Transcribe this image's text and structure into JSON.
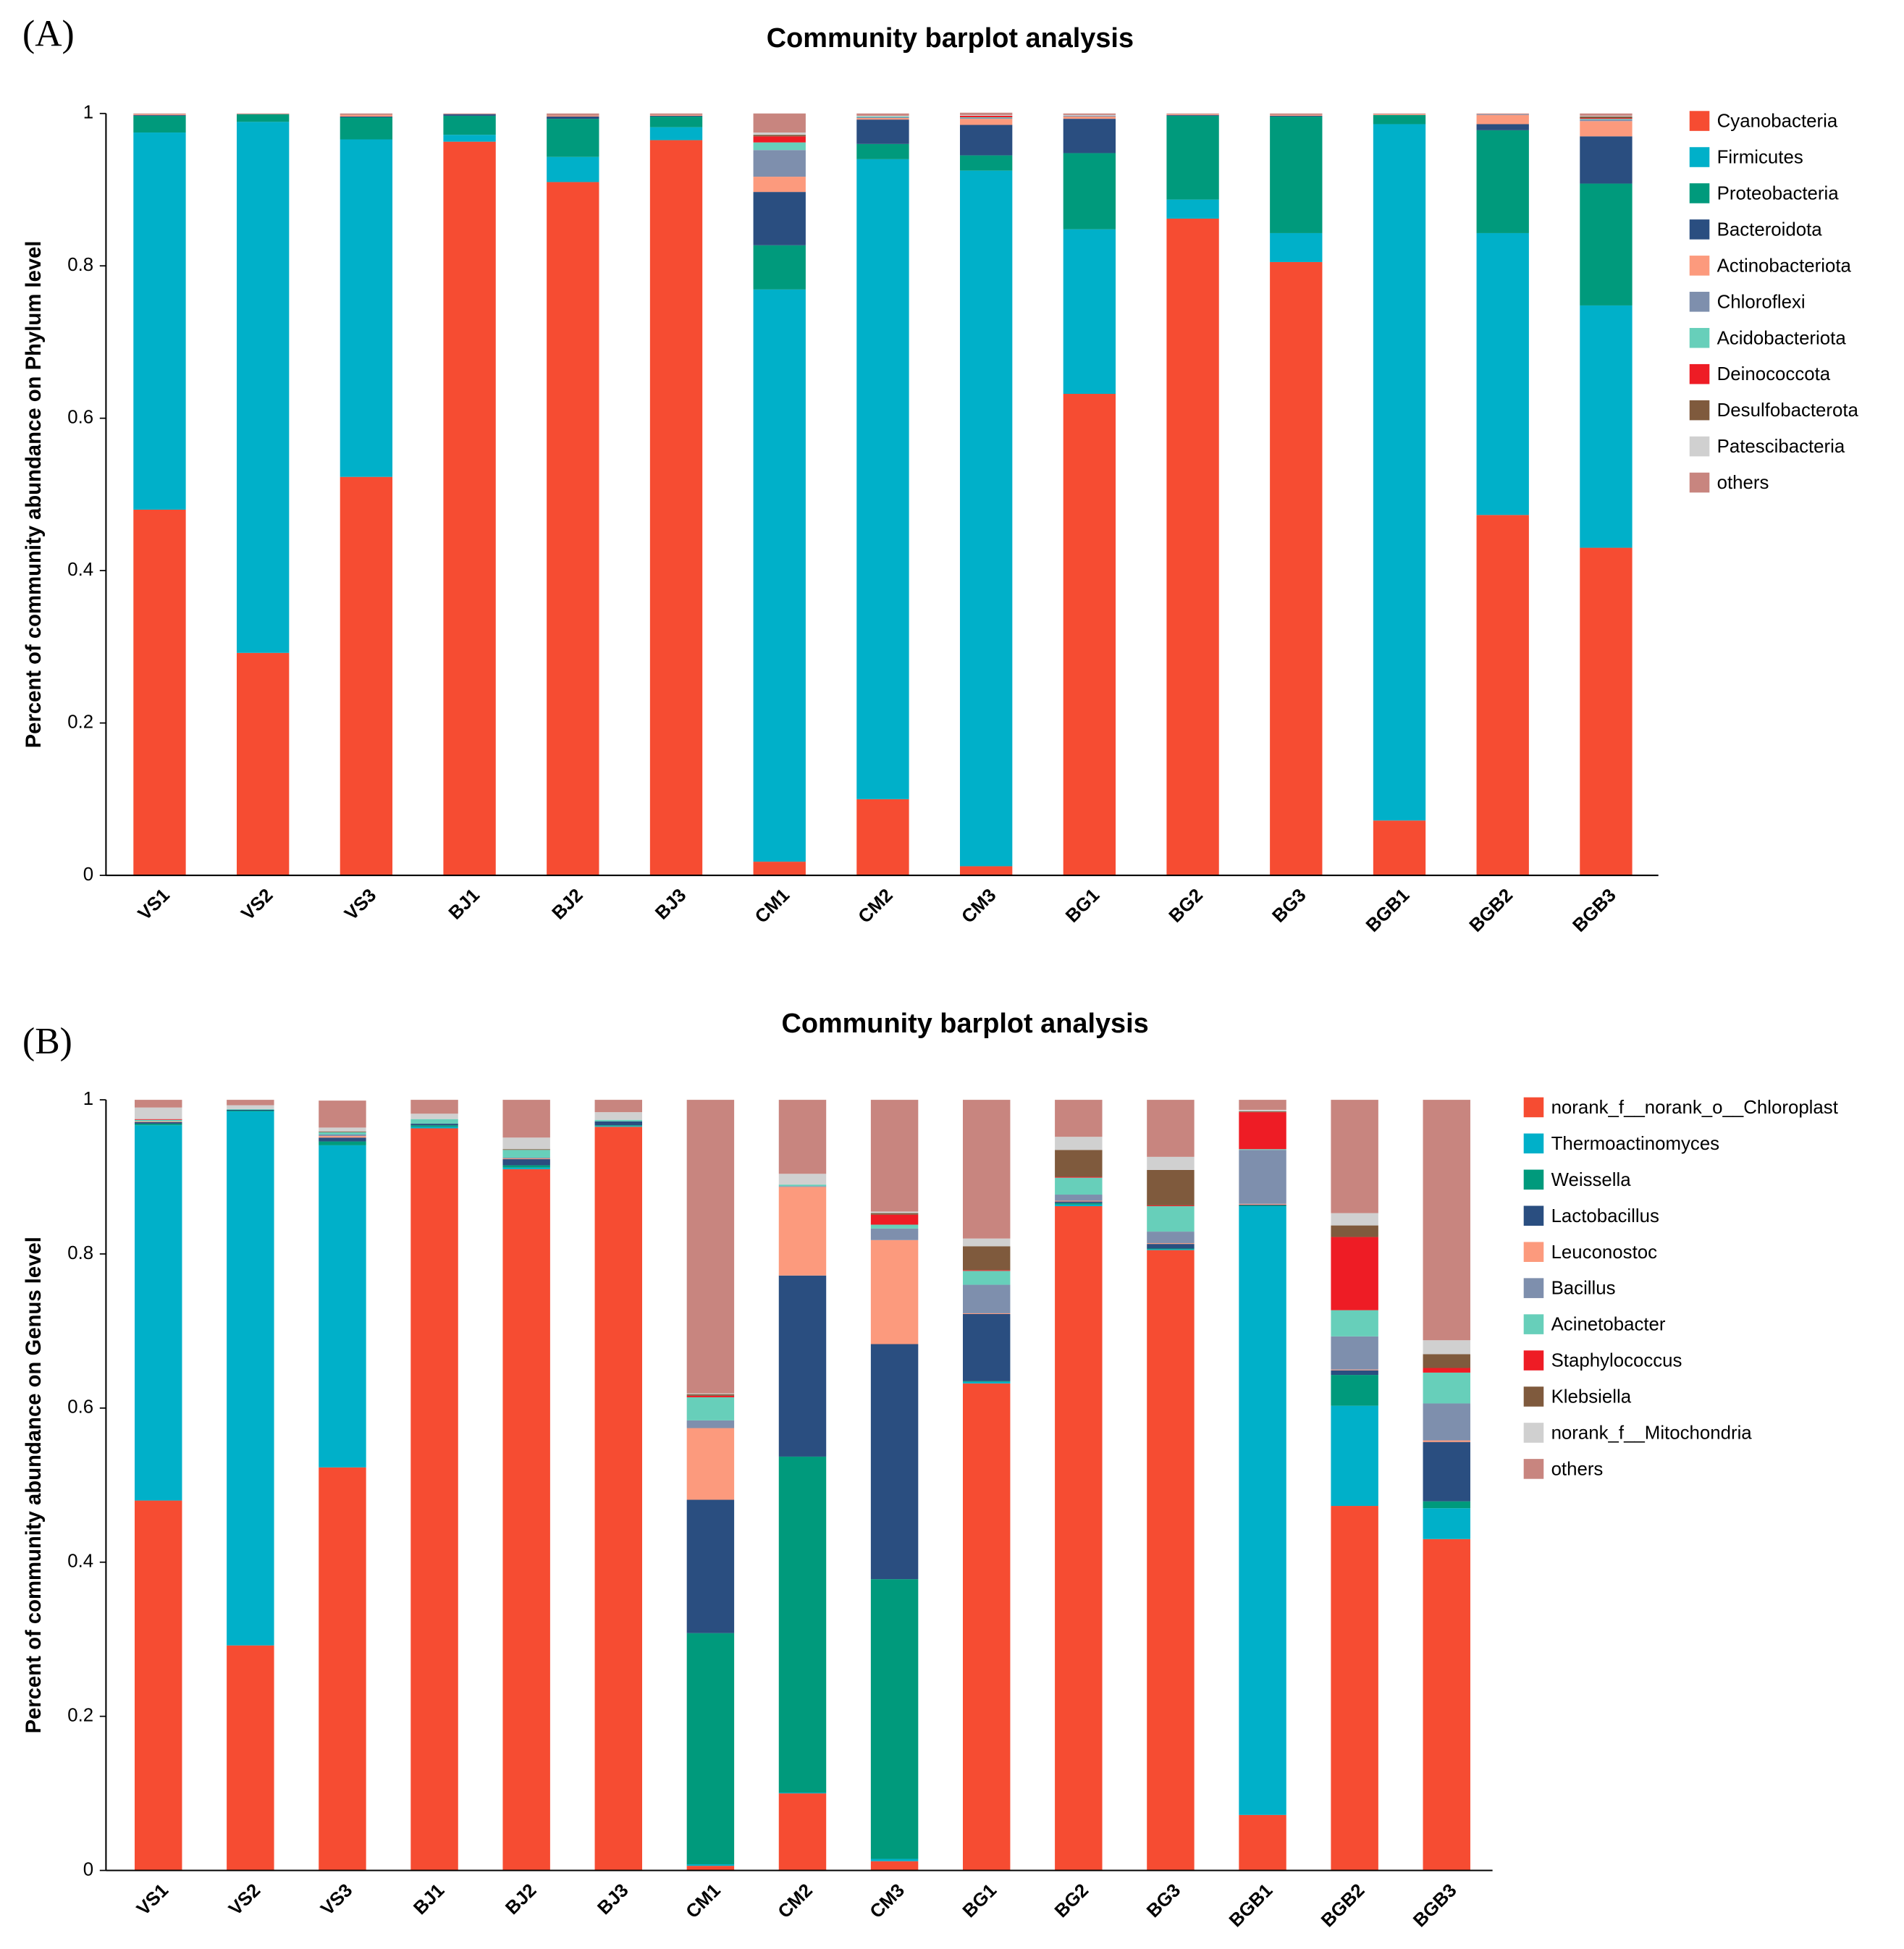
{
  "chart_data": [
    {
      "type": "stacked-bar",
      "panel_label": "(A)",
      "title": "Community barplot analysis",
      "y_label": "Percent of community abundance on Phylum level",
      "categories": [
        "VS1",
        "VS2",
        "VS3",
        "BJ1",
        "BJ2",
        "BJ3",
        "CM1",
        "CM2",
        "CM3",
        "BG1",
        "BG2",
        "BG3",
        "BGB1",
        "BGB2",
        "BGB3"
      ],
      "ylim": [
        0,
        1
      ],
      "yticks": [
        0,
        0.2,
        0.4,
        0.6,
        0.8,
        1
      ],
      "legend": "right",
      "series": [
        {
          "name": "Cyanobacteria",
          "color": "#f64c32",
          "values": [
            0.48,
            0.292,
            0.523,
            0.963,
            0.91,
            0.965,
            0.018,
            0.1,
            0.012,
            0.632,
            0.862,
            0.805,
            0.072,
            0.473,
            0.43
          ]
        },
        {
          "name": "Firmicutes",
          "color": "#00b0c9",
          "values": [
            0.495,
            0.697,
            0.443,
            0.009,
            0.033,
            0.017,
            0.751,
            0.84,
            0.913,
            0.216,
            0.025,
            0.038,
            0.914,
            0.37,
            0.318
          ]
        },
        {
          "name": "Proteobacteria",
          "color": "#009a7c",
          "values": [
            0.022,
            0.01,
            0.029,
            0.025,
            0.05,
            0.014,
            0.058,
            0.02,
            0.02,
            0.1,
            0.11,
            0.153,
            0.012,
            0.135,
            0.16
          ]
        },
        {
          "name": "Bacteroidota",
          "color": "#2a4e80",
          "values": [
            0.001,
            0,
            0.001,
            0.002,
            0.003,
            0.001,
            0.07,
            0.032,
            0.04,
            0.045,
            0.001,
            0.001,
            0,
            0.008,
            0.062
          ]
        },
        {
          "name": "Actinobacteriota",
          "color": "#fc9a7d",
          "values": [
            0.001,
            0,
            0.002,
            0,
            0.001,
            0.001,
            0.02,
            0.002,
            0.008,
            0.003,
            0.001,
            0.001,
            0.001,
            0.012,
            0.02
          ]
        },
        {
          "name": "Chloroflexi",
          "color": "#7e8fad",
          "values": [
            0,
            0,
            0,
            0,
            0,
            0,
            0.035,
            0.001,
            0.001,
            0.001,
            0,
            0,
            0,
            0.001,
            0.002
          ]
        },
        {
          "name": "Acidobacteriota",
          "color": "#67cfba",
          "values": [
            0,
            0,
            0,
            0,
            0,
            0,
            0.01,
            0.001,
            0.001,
            0,
            0,
            0,
            0,
            0,
            0.001
          ]
        },
        {
          "name": "Deinococcota",
          "color": "#ee1c25",
          "values": [
            0,
            0,
            0,
            0,
            0,
            0,
            0.008,
            0,
            0.002,
            0,
            0,
            0,
            0,
            0,
            0.001
          ]
        },
        {
          "name": "Desulfobacterota",
          "color": "#7f5a3d",
          "values": [
            0,
            0,
            0,
            0,
            0,
            0,
            0.002,
            0,
            0,
            0,
            0,
            0,
            0,
            0,
            0.002
          ]
        },
        {
          "name": "Patescibacteria",
          "color": "#d0d0d0",
          "values": [
            0,
            0,
            0,
            0,
            0,
            0,
            0.003,
            0.001,
            0.001,
            0.001,
            0,
            0,
            0,
            0,
            0.001
          ]
        },
        {
          "name": "others",
          "color": "#c8857f",
          "values": [
            0.001,
            0.001,
            0.002,
            0.001,
            0.003,
            0.002,
            0.025,
            0.003,
            0.003,
            0.002,
            0.001,
            0.002,
            0.001,
            0.001,
            0.003
          ]
        }
      ]
    },
    {
      "type": "stacked-bar",
      "panel_label": "(B)",
      "title": "Community barplot analysis",
      "y_label": "Percent of community abundance on Genus level",
      "categories": [
        "VS1",
        "VS2",
        "VS3",
        "BJ1",
        "BJ2",
        "BJ3",
        "CM1",
        "CM2",
        "CM3",
        "BG1",
        "BG2",
        "BG3",
        "BGB1",
        "BGB2",
        "BGB3"
      ],
      "ylim": [
        0,
        1
      ],
      "yticks": [
        0,
        0.2,
        0.4,
        0.6,
        0.8,
        1
      ],
      "legend": "right",
      "series": [
        {
          "name": "norank_f__norank_o__Chloroplast",
          "color": "#f64c32",
          "values": [
            0.48,
            0.292,
            0.523,
            0.963,
            0.91,
            0.965,
            0.006,
            0.1,
            0.012,
            0.632,
            0.862,
            0.805,
            0.072,
            0.473,
            0.43
          ]
        },
        {
          "name": "Thermoactinomyces",
          "color": "#00b0c9",
          "values": [
            0.487,
            0.693,
            0.418,
            0.002,
            0.002,
            0.001,
            0.002,
            0.001,
            0.003,
            0.002,
            0.002,
            0.001,
            0.79,
            0.13,
            0.04
          ]
        },
        {
          "name": "Weissella",
          "color": "#009a7c",
          "values": [
            0.002,
            0.001,
            0.005,
            0.002,
            0.003,
            0.001,
            0.3,
            0.436,
            0.363,
            0.001,
            0.002,
            0.001,
            0.001,
            0.04,
            0.009
          ]
        },
        {
          "name": "Lactobacillus",
          "color": "#2a4e80",
          "values": [
            0.002,
            0.001,
            0.005,
            0.002,
            0.008,
            0.005,
            0.173,
            0.235,
            0.305,
            0.087,
            0.002,
            0.006,
            0.001,
            0.006,
            0.077
          ]
        },
        {
          "name": "Leuconostoc",
          "color": "#fc9a7d",
          "values": [
            0.001,
            0,
            0.002,
            0,
            0.001,
            0,
            0.093,
            0.115,
            0.135,
            0.001,
            0.001,
            0.001,
            0.001,
            0.001,
            0.002
          ]
        },
        {
          "name": "Bacillus",
          "color": "#7e8fad",
          "values": [
            0,
            0,
            0.002,
            0,
            0.001,
            0,
            0.01,
            0.001,
            0.015,
            0.037,
            0.008,
            0.015,
            0.07,
            0.043,
            0.048
          ]
        },
        {
          "name": "Acinetobacter",
          "color": "#67cfba",
          "values": [
            0.002,
            0.001,
            0.003,
            0.006,
            0.01,
            0.002,
            0.03,
            0.002,
            0.005,
            0.018,
            0.022,
            0.033,
            0.001,
            0.034,
            0.04
          ]
        },
        {
          "name": "Staphylococcus",
          "color": "#ee1c25",
          "values": [
            0.001,
            0,
            0,
            0,
            0,
            0,
            0.002,
            0,
            0.013,
            0.001,
            0.001,
            0.001,
            0.048,
            0.095,
            0.006
          ]
        },
        {
          "name": "Klebsiella",
          "color": "#7f5a3d",
          "values": [
            0,
            0,
            0.001,
            0,
            0.001,
            0,
            0.002,
            0,
            0.002,
            0.031,
            0.035,
            0.046,
            0.001,
            0.015,
            0.018
          ]
        },
        {
          "name": "norank_f__Mitochondria",
          "color": "#d0d0d0",
          "values": [
            0.015,
            0.005,
            0.005,
            0.007,
            0.015,
            0.01,
            0.001,
            0.014,
            0.002,
            0.01,
            0.017,
            0.017,
            0.002,
            0.016,
            0.018
          ]
        },
        {
          "name": "others",
          "color": "#c8857f",
          "values": [
            0.01,
            0.007,
            0.035,
            0.018,
            0.049,
            0.016,
            0.381,
            0.096,
            0.145,
            0.18,
            0.048,
            0.074,
            0.013,
            0.147,
            0.312
          ]
        }
      ]
    }
  ]
}
